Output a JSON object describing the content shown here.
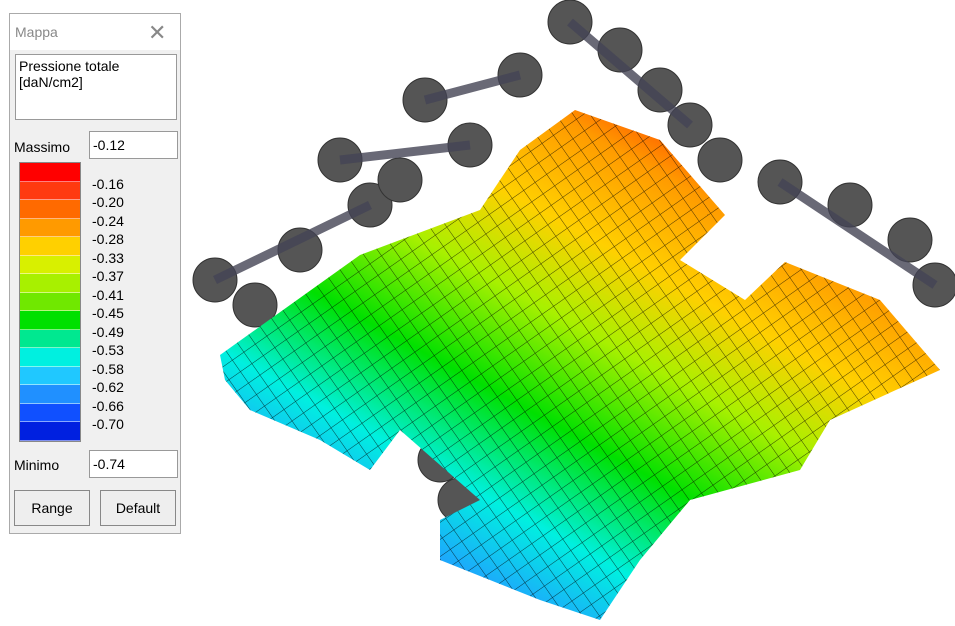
{
  "window": {
    "title": "Mappa"
  },
  "description": [
    "Pressione totale",
    "[daN/cm2]"
  ],
  "max": {
    "label": "Massimo",
    "value": "-0.12"
  },
  "legend": {
    "colors": [
      "#ff0000",
      "#ff3a10",
      "#ff6a00",
      "#ff9a00",
      "#ffd000",
      "#d8f000",
      "#a8f000",
      "#70e800",
      "#00e000",
      "#00e890",
      "#00f0e0",
      "#20c8ff",
      "#2090ff",
      "#1050ff",
      "#0020e0"
    ],
    "labels": [
      "-0.16",
      "-0.20",
      "-0.24",
      "-0.28",
      "-0.33",
      "-0.37",
      "-0.41",
      "-0.45",
      "-0.49",
      "-0.53",
      "-0.58",
      "-0.62",
      "-0.66",
      "-0.70"
    ]
  },
  "min": {
    "label": "Minimo",
    "value": "-0.74"
  },
  "buttons": [
    "Range",
    "Default"
  ]
}
